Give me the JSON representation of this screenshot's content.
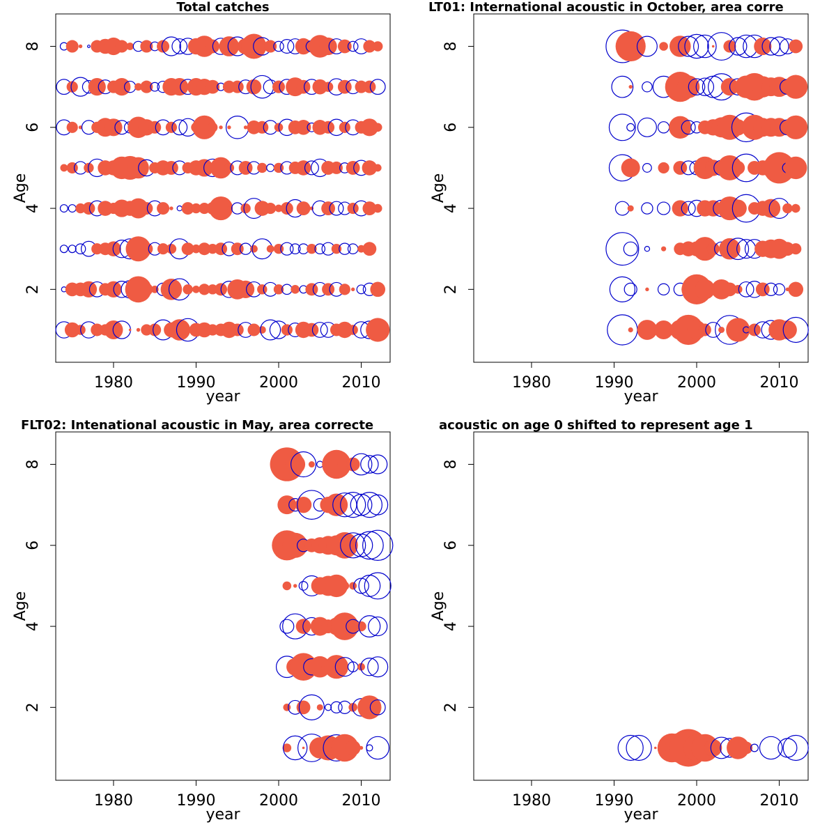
{
  "colors": {
    "positive": "#ef5b43",
    "negative": "#0000cc",
    "axis": "#000000"
  },
  "chart_data": [
    {
      "type": "scatter",
      "title": "Total catches",
      "xlabel": "year",
      "ylabel": "Age",
      "xlim": [
        1973,
        2013.5
      ],
      "ylim": [
        0.2,
        8.8
      ],
      "xticks": [
        "1980",
        "1990",
        "2000",
        "2010"
      ],
      "yticks": [
        "2",
        "4",
        "6",
        "8"
      ],
      "grid": false,
      "legend": "none",
      "years": [
        1974,
        1975,
        1976,
        1977,
        1978,
        1979,
        1980,
        1981,
        1982,
        1983,
        1984,
        1985,
        1986,
        1987,
        1988,
        1989,
        1990,
        1991,
        1992,
        1993,
        1994,
        1995,
        1996,
        1997,
        1998,
        1999,
        2000,
        2001,
        2002,
        2003,
        2004,
        2005,
        2006,
        2007,
        2008,
        2009,
        2010,
        2011,
        2012
      ],
      "residuals": [
        {
          "age": 8,
          "values": [
            -0.6,
            1.0,
            0.3,
            -0.2,
            1.0,
            1.2,
            1.4,
            1.0,
            0.6,
            -0.8,
            1.0,
            -0.7,
            1.0,
            -1.5,
            -1.2,
            -1.3,
            1.3,
            1.7,
            1.1,
            -1.3,
            1.6,
            -1.5,
            1.3,
            2.0,
            -1.4,
            1.0,
            -0.8,
            -1.1,
            -1.2,
            1.3,
            -0.9,
            1.8,
            1.4,
            -1.2,
            1.1,
            -0.8,
            -1.2,
            1.0,
            0.8
          ]
        },
        {
          "age": 7,
          "values": [
            -1.2,
            0.9,
            -1.5,
            -1.0,
            1.4,
            -1.1,
            1.0,
            1.4,
            -0.9,
            0.6,
            1.0,
            -0.7,
            -0.9,
            1.4,
            1.4,
            -1.2,
            1.4,
            1.3,
            1.1,
            -0.6,
            1.0,
            1.0,
            -1.1,
            1.2,
            -1.8,
            -1.1,
            1.0,
            -1.2,
            1.5,
            1.1,
            -1.2,
            1.2,
            0.8,
            -1.3,
            1.1,
            -1.1,
            1.0,
            1.0,
            -1.2
          ]
        },
        {
          "age": 6,
          "values": [
            -1.2,
            0.9,
            0.3,
            -1.1,
            0.9,
            1.5,
            1.4,
            -1.1,
            -0.9,
            1.7,
            1.3,
            1.0,
            -1.2,
            0.9,
            -1.2,
            -1.4,
            0.8,
            1.9,
            0.8,
            0.3,
            0.3,
            -1.8,
            0.3,
            1.1,
            1.0,
            -1.1,
            0.7,
            -1.3,
            1.1,
            1.2,
            -0.7,
            1.2,
            1.0,
            -1.3,
            0.9,
            -1.2,
            1.0,
            1.4,
            0.7
          ]
        },
        {
          "age": 5,
          "values": [
            0.6,
            0.9,
            -1.0,
            0.8,
            -1.4,
            1.2,
            1.2,
            1.8,
            1.9,
            1.7,
            -1.3,
            0.9,
            1.2,
            1.1,
            -1.1,
            0.9,
            1.2,
            1.4,
            -1.4,
            1.7,
            0.8,
            -1.1,
            1.1,
            -1.0,
            0.8,
            -0.6,
            0.8,
            -1.0,
            1.0,
            1.2,
            -1.1,
            -1.4,
            1.1,
            1.0,
            -0.8,
            1.1,
            -1.2,
            1.2,
            0.6
          ]
        },
        {
          "age": 4,
          "values": [
            -0.6,
            -0.6,
            0.8,
            1.0,
            -1.2,
            1.2,
            0.9,
            1.4,
            1.2,
            1.6,
            1.0,
            -1.2,
            1.0,
            0.3,
            -0.4,
            1.0,
            0.8,
            0.9,
            1.0,
            1.9,
            0.3,
            -0.9,
            0.8,
            -1.6,
            1.2,
            0.9,
            0.6,
            1.0,
            -1.4,
            1.1,
            0.3,
            -1.2,
            1.1,
            -1.1,
            -1.0,
            0.9,
            -1.2,
            1.1,
            0.7
          ]
        },
        {
          "age": 3,
          "values": [
            -0.6,
            -0.6,
            -0.8,
            -1.2,
            0.9,
            1.0,
            1.2,
            -1.4,
            -1.6,
            2.0,
            1.0,
            -1.0,
            0.9,
            0.8,
            -1.6,
            1.0,
            0.7,
            1.0,
            0.8,
            1.0,
            -1.1,
            1.0,
            -0.9,
            0.6,
            -1.6,
            0.6,
            0.8,
            -1.0,
            -0.8,
            -0.8,
            0.8,
            -0.8,
            -1.0,
            0.8,
            -0.9,
            -0.8,
            0.6,
            1.1,
            0
          ]
        },
        {
          "age": 2,
          "values": [
            -0.4,
            1.1,
            1.1,
            1.3,
            -1.2,
            1.0,
            1.3,
            -1.3,
            -1.4,
            2.1,
            1.0,
            0.6,
            -1.0,
            1.7,
            -1.7,
            0.8,
            0.6,
            0.9,
            0.8,
            1.0,
            -1.3,
            1.6,
            1.4,
            -1.2,
            0.8,
            -1.1,
            0.8,
            -0.8,
            0.7,
            -0.6,
            1.0,
            -1.1,
            1.0,
            -1.1,
            0.9,
            0.3,
            -0.7,
            -1.0,
            1.2
          ]
        },
        {
          "age": 1,
          "values": [
            -1.3,
            1.2,
            0.8,
            -1.3,
            1.0,
            0.9,
            1.5,
            -1.4,
            0.2,
            0.3,
            0.9,
            1.0,
            -1.6,
            1.2,
            1.7,
            -1.8,
            1.1,
            1.2,
            0.9,
            1.0,
            1.3,
            1.0,
            -1.2,
            1.0,
            0.6,
            -1.6,
            -1.4,
            0.9,
            -1.1,
            1.3,
            1.1,
            -1.2,
            -1.2,
            1.0,
            1.3,
            0.8,
            -1.3,
            -1.4,
            1.9
          ]
        }
      ]
    },
    {
      "type": "scatter",
      "title": "LT01:     International acoustic in October, area corre",
      "xlabel": "year",
      "ylabel": "Age",
      "xlim": [
        1973,
        2013.5
      ],
      "ylim": [
        0.2,
        8.8
      ],
      "xticks": [
        "1980",
        "1990",
        "2000",
        "2010"
      ],
      "yticks": [
        "2",
        "4",
        "6",
        "8"
      ],
      "grid": false,
      "legend": "none",
      "years": [
        1991,
        1992,
        1994,
        1996,
        1998,
        1999,
        2000,
        2001,
        2002,
        2003,
        2004,
        2005,
        2006,
        2007,
        2008,
        2009,
        2010,
        2011,
        2012
      ],
      "residuals": [
        {
          "age": 8,
          "values": [
            -2.6,
            2.4,
            -1.6,
            0.7,
            1.7,
            -1.6,
            -1.9,
            -1.8,
            0.2,
            -2.2,
            1.0,
            -1.4,
            -1.8,
            -1.8,
            1.4,
            -1.4,
            -1.5,
            -1.2,
            1.1
          ]
        },
        {
          "age": 7,
          "values": [
            -1.7,
            0.3,
            -0.8,
            -1.7,
            2.4,
            1.8,
            -1.3,
            -1.4,
            -1.7,
            -2.1,
            1.4,
            -1.3,
            1.8,
            2.2,
            1.7,
            1.5,
            1.6,
            -1.2,
            1.9
          ]
        },
        {
          "age": 6,
          "values": [
            -2.1,
            -0.6,
            -1.5,
            -0.9,
            1.8,
            -1.1,
            -0.9,
            1.1,
            1.3,
            1.6,
            2.0,
            1.3,
            -2.3,
            2.0,
            1.5,
            1.5,
            1.5,
            -1.2,
            1.9
          ]
        },
        {
          "age": 5,
          "values": [
            -2.1,
            1.5,
            -0.7,
            0.9,
            1.1,
            -1.1,
            -1.1,
            1.8,
            1.3,
            -1.2,
            2.0,
            1.1,
            -2.2,
            1.1,
            1.2,
            1.5,
            2.5,
            -0.8,
            1.8
          ]
        },
        {
          "age": 4,
          "values": [
            -1.1,
            0.5,
            -0.9,
            -1.0,
            1.3,
            -1.1,
            -1.3,
            1.3,
            1.3,
            -1.3,
            1.9,
            1.4,
            -2.2,
            1.0,
            1.2,
            1.5,
            -1.6,
            0.8,
            0.7
          ]
        },
        {
          "age": 3,
          "values": [
            -2.6,
            -1.1,
            -0.4,
            0.4,
            1.0,
            1.2,
            1.2,
            1.9,
            1.0,
            -1.1,
            1.7,
            -1.7,
            -1.5,
            -1.5,
            1.3,
            1.5,
            1.6,
            1.1,
            0.9
          ]
        },
        {
          "age": 2,
          "values": [
            -2.0,
            -1.0,
            0.3,
            -0.9,
            -1.0,
            1.1,
            2.4,
            1.6,
            0.3,
            1.6,
            1.1,
            0.7,
            -1.2,
            -1.3,
            1.1,
            -1.0,
            -0.9,
            0.3,
            1.2
          ]
        },
        {
          "age": 1,
          "values": [
            -2.4,
            0.4,
            1.6,
            1.5,
            1.6,
            2.4,
            1.5,
            1.0,
            -1.2,
            0.5,
            -2.3,
            1.9,
            -0.5,
            1.0,
            -1.3,
            -1.5,
            1.7,
            1.5,
            -2.0
          ]
        }
      ]
    },
    {
      "type": "scatter",
      "title": "FLT02: Intenational acoustic in May, area correcte",
      "xlabel": "year",
      "ylabel": "Age",
      "xlim": [
        1973,
        2013.5
      ],
      "ylim": [
        0.2,
        8.8
      ],
      "xticks": [
        "1980",
        "1990",
        "2000",
        "2010"
      ],
      "yticks": [
        "2",
        "4",
        "6",
        "8"
      ],
      "grid": false,
      "legend": "none",
      "years": [
        2001,
        2002,
        2003,
        2004,
        2005,
        2006,
        2007,
        2008,
        2009,
        2010,
        2011,
        2012
      ],
      "residuals": [
        {
          "age": 8,
          "values": [
            2.7,
            1.6,
            -2.0,
            0.5,
            -0.5,
            -0.7,
            2.3,
            1.2,
            1.1,
            -1.7,
            -1.4,
            -1.5
          ]
        },
        {
          "age": 7,
          "values": [
            1.5,
            -1.0,
            1.3,
            -2.3,
            -1.0,
            1.3,
            1.8,
            -1.9,
            -2.0,
            -1.7,
            -2.0,
            -1.6
          ]
        },
        {
          "age": 6,
          "values": [
            2.4,
            2.0,
            -1.0,
            1.1,
            1.3,
            1.5,
            1.6,
            2.1,
            -2.0,
            -1.8,
            -2.2,
            -2.4
          ]
        },
        {
          "age": 5,
          "values": [
            0.7,
            0.3,
            -0.7,
            -1.6,
            1.4,
            1.6,
            1.8,
            0.7,
            0.6,
            -1.2,
            -1.7,
            -2.1
          ]
        },
        {
          "age": 4,
          "values": [
            -1.1,
            -2.0,
            1.2,
            -1.4,
            1.5,
            1.1,
            1.4,
            2.2,
            -1.1,
            0.8,
            -1.7,
            -1.5
          ]
        },
        {
          "age": 3,
          "values": [
            -1.7,
            1.4,
            2.2,
            -1.3,
            1.7,
            1.1,
            1.9,
            -1.5,
            -0.8,
            0.6,
            -1.4,
            -1.6
          ]
        },
        {
          "age": 2,
          "values": [
            0.6,
            -1.1,
            1.1,
            -2.0,
            0.5,
            -0.5,
            -0.9,
            -1.0,
            0.7,
            -1.4,
            1.9,
            -1.2
          ]
        },
        {
          "age": 1,
          "values": [
            0.7,
            -1.9,
            0.2,
            -2.2,
            1.7,
            2.0,
            -2.1,
            2.2,
            1.2,
            0.3,
            -0.5,
            -1.8
          ]
        }
      ]
    },
    {
      "type": "scatter",
      "title": "acoustic on age 0 shifted to represent age 1",
      "xlabel": "year",
      "ylabel": "Age",
      "xlim": [
        1973,
        2013.5
      ],
      "ylim": [
        0.2,
        8.8
      ],
      "xticks": [
        "1980",
        "1990",
        "2000",
        "2010"
      ],
      "yticks": [
        "2",
        "4",
        "6",
        "8"
      ],
      "grid": false,
      "legend": "none",
      "years": [
        1992,
        1993,
        1995,
        1997,
        1998,
        1999,
        2000,
        2001,
        2002,
        2003,
        2004,
        2005,
        2006,
        2007,
        2009,
        2011,
        2012
      ],
      "residuals": [
        {
          "age": 1,
          "values": [
            -2.0,
            -2.0,
            0.2,
            2.3,
            2.4,
            3.0,
            2.1,
            2.2,
            1.4,
            -1.7,
            -1.5,
            1.8,
            1.0,
            -0.6,
            -1.8,
            -1.5,
            -2.0
          ]
        }
      ]
    }
  ]
}
